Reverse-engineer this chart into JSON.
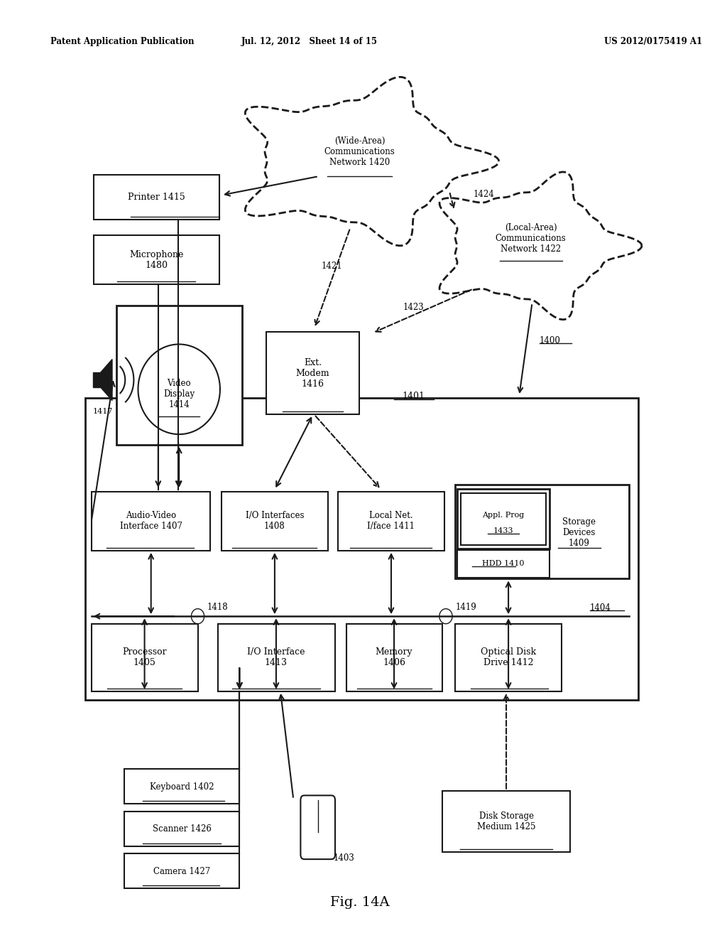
{
  "header_left": "Patent Application Publication",
  "header_mid": "Jul. 12, 2012   Sheet 14 of 15",
  "header_right": "US 2012/0175419 A1",
  "fig_label": "Fig. 14A",
  "bg_color": "#ffffff",
  "line_color": "#1a1a1a"
}
